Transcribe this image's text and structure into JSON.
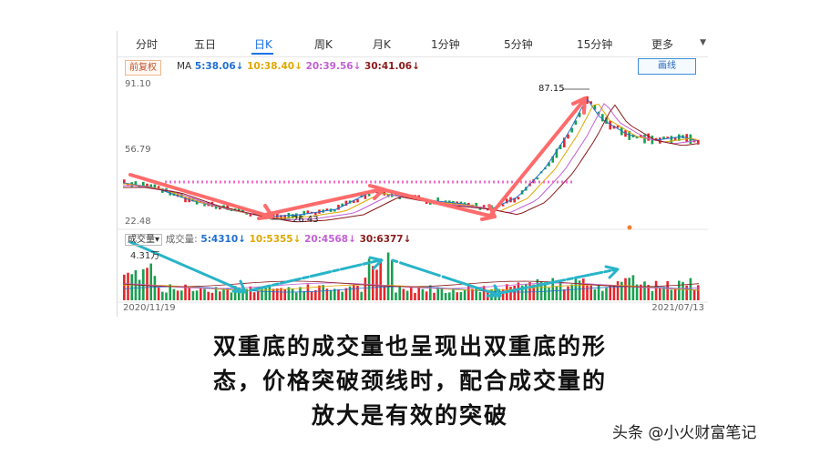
{
  "tabs": [
    {
      "label": "分时"
    },
    {
      "label": "五日"
    },
    {
      "label": "日K"
    },
    {
      "label": "周K"
    },
    {
      "label": "月K"
    },
    {
      "label": "1分钟"
    },
    {
      "label": "5分钟"
    },
    {
      "label": "15分钟"
    },
    {
      "label": "更多"
    }
  ],
  "active_tab": "日K",
  "toolbar": {
    "adjust_label": "前复权",
    "ma_label": "MA",
    "ma_values": [
      {
        "text": "5:38.06↓",
        "color": "#1f6fd1"
      },
      {
        "text": "10:38.40↓",
        "color": "#e0a800"
      },
      {
        "text": "20:39.56↓",
        "color": "#c260d6"
      },
      {
        "text": "30:41.06↓",
        "color": "#8b1a1a"
      }
    ],
    "draw_line_label": "画线"
  },
  "price_axis": {
    "top": "91.10",
    "mid": "56.79",
    "bottom": "22.48"
  },
  "price_annotations": {
    "high": "87.15",
    "low": "26.43"
  },
  "volume": {
    "selector_label": "成交量▾",
    "title": "成交量:",
    "values": [
      {
        "text": "5:4310↓",
        "color": "#1f6fd1"
      },
      {
        "text": "10:5355↓",
        "color": "#e0a800"
      },
      {
        "text": "20:4568↓",
        "color": "#c260d6"
      },
      {
        "text": "30:6377↓",
        "color": "#8b1a1a"
      }
    ],
    "axis_top": "4.31万"
  },
  "dates": {
    "start": "2020/11/19",
    "end": "2021/07/13"
  },
  "caption": [
    "双重底的成交量也呈现出双重底的形",
    "态，价格突破颈线时，配合成交量的",
    "放大是有效的突破"
  ],
  "watermark": "头条 @小火财富笔记",
  "colors": {
    "up": "#e8262b",
    "down": "#1aa050",
    "accent": "#1a73e8",
    "arrow_red": "#ff6b6b",
    "arrow_cyan": "#28b4c8",
    "neckline": "#f06ecb"
  }
}
